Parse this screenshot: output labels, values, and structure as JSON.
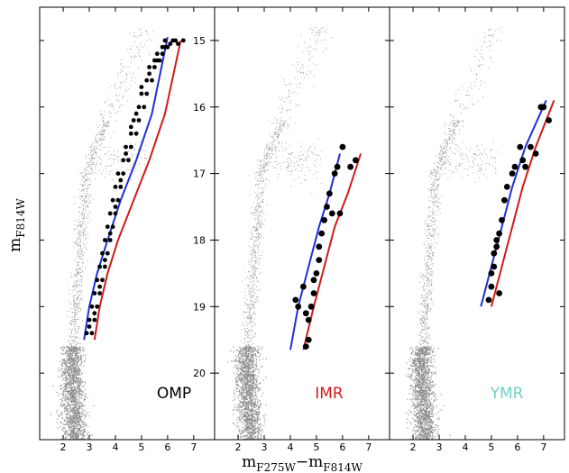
{
  "chart_data": {
    "type": "scatter",
    "xlabel": {
      "base1": "m",
      "sub1": "F275W",
      "sep": "−",
      "base2": "m",
      "sub2": "F814W"
    },
    "ylabel": {
      "base": "m",
      "sub": "F814W"
    },
    "xlim": [
      1.1,
      7.8
    ],
    "ylim": [
      21.0,
      14.5
    ],
    "yticks": [
      15,
      16,
      17,
      18,
      19,
      20
    ],
    "xticks": [
      2,
      3,
      4,
      5,
      6,
      7
    ],
    "background_color": "#8a8a8a",
    "colors": {
      "blue_line": "#1f2fd6",
      "red_line": "#d11a1a",
      "points": "#000000"
    },
    "panels": [
      {
        "label": "OMP",
        "label_color": "#000000",
        "blue_fiducial": {
          "x": [
            2.8,
            3.0,
            3.3,
            3.7,
            4.2,
            4.8,
            5.4,
            6.0
          ],
          "y": [
            19.5,
            19.0,
            18.5,
            18.0,
            17.4,
            16.8,
            16.1,
            14.95
          ]
        },
        "red_fiducial": {
          "x": [
            3.2,
            3.4,
            3.7,
            4.1,
            4.7,
            5.3,
            5.9,
            6.5
          ],
          "y": [
            19.5,
            19.0,
            18.5,
            18.0,
            17.4,
            16.8,
            16.1,
            15.0
          ]
        },
        "stars": {
          "x": [
            2.9,
            3.1,
            3.0,
            3.2,
            3.1,
            3.3,
            3.2,
            3.4,
            3.3,
            3.5,
            3.4,
            3.6,
            3.5,
            3.7,
            3.6,
            3.8,
            3.7,
            3.9,
            3.8,
            4.0,
            3.9,
            4.1,
            4.0,
            4.2,
            4.1,
            4.3,
            4.3,
            4.5,
            4.4,
            4.6,
            4.6,
            4.8,
            4.7,
            4.9,
            4.9,
            5.1,
            5.0,
            5.2,
            5.2,
            5.4,
            5.3,
            5.5,
            5.5,
            5.7,
            5.6,
            5.8,
            5.8,
            6.0,
            5.9,
            6.2,
            6.1,
            6.4,
            6.3,
            6.6,
            3.0,
            3.2,
            3.4,
            3.6,
            3.8,
            4.0,
            4.2,
            4.4,
            4.6,
            4.8,
            5.0,
            5.3,
            5.6,
            5.9
          ],
          "y": [
            19.4,
            19.4,
            19.2,
            19.2,
            19.0,
            19.0,
            18.8,
            18.8,
            18.6,
            18.6,
            18.4,
            18.4,
            18.2,
            18.2,
            18.0,
            18.0,
            17.8,
            17.8,
            17.6,
            17.6,
            17.4,
            17.4,
            17.2,
            17.2,
            17.0,
            17.0,
            16.8,
            16.8,
            16.6,
            16.6,
            16.4,
            16.4,
            16.2,
            16.2,
            16.0,
            16.0,
            15.8,
            15.8,
            15.6,
            15.6,
            15.4,
            15.4,
            15.3,
            15.3,
            15.2,
            15.2,
            15.1,
            15.1,
            15.0,
            15.0,
            15.05,
            15.05,
            15.0,
            15.0,
            19.3,
            19.1,
            18.7,
            18.3,
            17.9,
            17.5,
            17.1,
            16.7,
            16.3,
            16.1,
            15.7,
            15.5,
            15.3,
            15.1
          ]
        }
      },
      {
        "label": "IMR",
        "label_color": "#d11a1a",
        "blue_fiducial": {
          "x": [
            4.0,
            4.3,
            4.7,
            5.1,
            5.5,
            5.9
          ],
          "y": [
            19.65,
            19.0,
            18.4,
            17.8,
            17.3,
            16.7
          ]
        },
        "red_fiducial": {
          "x": [
            4.5,
            4.9,
            5.3,
            5.7,
            6.2,
            6.7
          ],
          "y": [
            19.65,
            19.0,
            18.4,
            17.8,
            17.3,
            16.7
          ]
        },
        "stars": {
          "x": [
            4.6,
            4.7,
            4.7,
            4.8,
            4.9,
            4.9,
            5.0,
            5.1,
            5.1,
            5.2,
            5.3,
            5.4,
            5.5,
            5.7,
            5.8,
            6.0,
            6.3,
            6.5,
            4.2,
            4.3,
            4.5,
            4.6,
            5.6,
            5.9
          ],
          "y": [
            19.6,
            19.5,
            19.2,
            19.0,
            18.8,
            18.6,
            18.5,
            18.3,
            18.1,
            17.9,
            17.7,
            17.5,
            17.3,
            17.0,
            16.9,
            16.6,
            16.9,
            16.8,
            18.9,
            19.0,
            18.7,
            19.1,
            17.6,
            17.6
          ]
        }
      },
      {
        "label": "YMR",
        "label_color": "#6fd1c6",
        "blue_fiducial": {
          "x": [
            4.6,
            5.0,
            5.4,
            5.8,
            6.3,
            7.1
          ],
          "y": [
            19.0,
            18.4,
            17.8,
            17.2,
            16.6,
            15.9
          ]
        },
        "red_fiducial": {
          "x": [
            5.0,
            5.4,
            5.8,
            6.2,
            6.7,
            7.4
          ],
          "y": [
            19.0,
            18.4,
            17.8,
            17.2,
            16.6,
            15.9
          ]
        },
        "stars": {
          "x": [
            4.9,
            5.0,
            5.0,
            5.1,
            5.1,
            5.2,
            5.2,
            5.3,
            5.4,
            5.5,
            5.6,
            5.8,
            5.9,
            6.1,
            6.3,
            6.5,
            6.7,
            7.0,
            7.2,
            5.3,
            6.2,
            6.9
          ],
          "y": [
            18.9,
            18.7,
            18.5,
            18.4,
            18.2,
            18.0,
            18.1,
            17.9,
            17.7,
            17.4,
            17.2,
            17.0,
            16.9,
            16.6,
            16.9,
            16.6,
            16.7,
            16.0,
            16.2,
            18.8,
            16.8,
            16.0
          ]
        }
      }
    ]
  }
}
